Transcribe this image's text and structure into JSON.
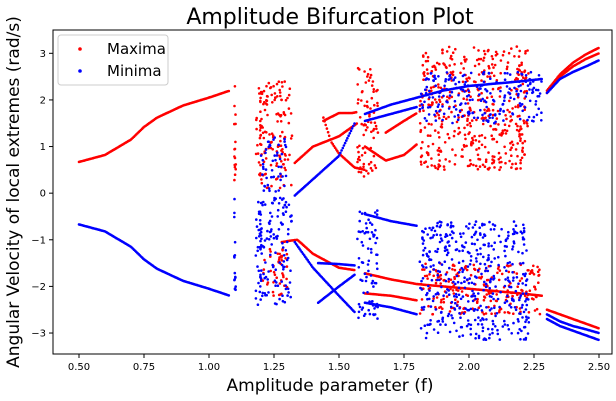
{
  "chart_data": {
    "type": "scatter",
    "title": "Amplitude Bifurcation Plot",
    "xlabel": "Amplitude parameter (f)",
    "ylabel": "Angular Velocity of local extremes (rad/s)",
    "xlim": [
      0.4,
      2.55
    ],
    "ylim": [
      -3.45,
      3.5
    ],
    "xticks": [
      "0.50",
      "0.75",
      "1.00",
      "1.25",
      "1.50",
      "1.75",
      "2.00",
      "2.25",
      "2.50"
    ],
    "xtick_values": [
      0.5,
      0.75,
      1.0,
      1.25,
      1.5,
      1.75,
      2.0,
      2.25,
      2.5
    ],
    "yticks": [
      "−3",
      "−2",
      "−1",
      "0",
      "1",
      "2",
      "3"
    ],
    "ytick_values": [
      -3,
      -2,
      -1,
      0,
      1,
      2,
      3
    ],
    "grid": false,
    "legend_position": "top-left",
    "series": [
      {
        "name": "Maxima",
        "color": "#ff0000",
        "regular_curves": [
          [
            [
              0.5,
              0.67
            ],
            [
              0.6,
              0.82
            ],
            [
              0.7,
              1.15
            ],
            [
              0.75,
              1.42
            ],
            [
              0.8,
              1.62
            ],
            [
              0.9,
              1.88
            ],
            [
              1.0,
              2.05
            ],
            [
              1.08,
              2.2
            ]
          ],
          [
            [
              1.33,
              0.65
            ],
            [
              1.4,
              1.0
            ],
            [
              1.5,
              1.22
            ],
            [
              1.57,
              1.5
            ]
          ],
          [
            [
              1.44,
              1.55
            ],
            [
              1.5,
              1.72
            ],
            [
              1.55,
              1.72
            ],
            [
              1.57,
              1.74
            ]
          ],
          [
            [
              1.44,
              1.62
            ],
            [
              1.47,
              1.1
            ],
            [
              1.5,
              0.85
            ],
            [
              1.56,
              0.55
            ],
            [
              1.6,
              0.5
            ]
          ],
          [
            [
              1.6,
              1.0
            ],
            [
              1.68,
              0.7
            ],
            [
              1.75,
              0.82
            ],
            [
              1.8,
              1.05
            ]
          ],
          [
            [
              1.68,
              1.3
            ],
            [
              1.75,
              1.55
            ],
            [
              1.8,
              1.72
            ]
          ],
          [
            [
              2.3,
              2.2
            ],
            [
              2.35,
              2.55
            ],
            [
              2.4,
              2.8
            ],
            [
              2.45,
              2.98
            ],
            [
              2.5,
              3.12
            ]
          ],
          [
            [
              2.3,
              2.15
            ],
            [
              2.35,
              2.5
            ],
            [
              2.4,
              2.72
            ],
            [
              2.45,
              2.88
            ],
            [
              2.5,
              3.0
            ]
          ],
          [
            [
              1.28,
              -1.05
            ],
            [
              1.31,
              -1.02
            ],
            [
              1.34,
              -1.0
            ],
            [
              1.4,
              -1.3
            ],
            [
              1.5,
              -1.6
            ],
            [
              1.56,
              -1.65
            ]
          ],
          [
            [
              1.6,
              -1.72
            ],
            [
              1.7,
              -1.85
            ],
            [
              1.8,
              -1.95
            ],
            [
              1.9,
              -2.0
            ],
            [
              2.0,
              -2.05
            ],
            [
              2.1,
              -2.1
            ],
            [
              2.2,
              -2.15
            ],
            [
              2.28,
              -2.2
            ]
          ],
          [
            [
              2.3,
              -2.5
            ],
            [
              2.35,
              -2.6
            ],
            [
              2.4,
              -2.7
            ],
            [
              2.45,
              -2.8
            ],
            [
              2.5,
              -2.9
            ]
          ],
          [
            [
              1.6,
              -2.15
            ],
            [
              1.7,
              -2.2
            ],
            [
              1.8,
              -2.3
            ]
          ]
        ],
        "chaotic_bands": [
          [
            1.18,
            1.32,
            0.1,
            2.4
          ],
          [
            1.57,
            1.65,
            0.35,
            2.7
          ],
          [
            1.81,
            2.23,
            0.5,
            3.15
          ],
          [
            1.2,
            1.3,
            -2.2,
            -1.1
          ],
          [
            1.81,
            2.28,
            -2.6,
            -1.5
          ]
        ],
        "vertical_scatter": [
          [
            1.1,
            0.0,
            2.3
          ],
          [
            1.2,
            0.0,
            2.3
          ]
        ]
      },
      {
        "name": "Minima",
        "color": "#0000ff",
        "regular_curves": [
          [
            [
              0.5,
              -0.67
            ],
            [
              0.6,
              -0.82
            ],
            [
              0.7,
              -1.15
            ],
            [
              0.75,
              -1.42
            ],
            [
              0.8,
              -1.62
            ],
            [
              0.9,
              -1.88
            ],
            [
              1.0,
              -2.05
            ],
            [
              1.08,
              -2.2
            ]
          ],
          [
            [
              1.33,
              -1.05
            ],
            [
              1.4,
              -1.6
            ],
            [
              1.5,
              -2.2
            ],
            [
              1.56,
              -2.55
            ]
          ],
          [
            [
              1.42,
              -2.35
            ],
            [
              1.5,
              -2.0
            ],
            [
              1.56,
              -1.75
            ]
          ],
          [
            [
              1.42,
              -1.5
            ],
            [
              1.5,
              -1.52
            ],
            [
              1.56,
              -1.55
            ]
          ],
          [
            [
              1.6,
              -0.45
            ],
            [
              1.7,
              -0.6
            ],
            [
              1.8,
              -0.7
            ]
          ],
          [
            [
              1.6,
              -2.35
            ],
            [
              1.7,
              -2.45
            ],
            [
              1.8,
              -2.6
            ]
          ],
          [
            [
              2.3,
              -2.7
            ],
            [
              2.35,
              -2.85
            ],
            [
              2.4,
              -2.95
            ],
            [
              2.45,
              -3.05
            ],
            [
              2.5,
              -3.15
            ]
          ],
          [
            [
              2.3,
              -2.6
            ],
            [
              2.35,
              -2.75
            ],
            [
              2.4,
              -2.85
            ],
            [
              2.45,
              -2.92
            ],
            [
              2.5,
              -3.0
            ]
          ],
          [
            [
              1.33,
              -0.05
            ],
            [
              1.4,
              0.3
            ],
            [
              1.5,
              0.8
            ],
            [
              1.56,
              1.5
            ]
          ],
          [
            [
              1.6,
              1.7
            ],
            [
              1.7,
              1.9
            ],
            [
              1.8,
              2.05
            ],
            [
              1.9,
              2.2
            ],
            [
              2.0,
              2.3
            ],
            [
              2.1,
              2.35
            ],
            [
              2.2,
              2.4
            ],
            [
              2.28,
              2.45
            ]
          ],
          [
            [
              2.3,
              2.15
            ],
            [
              2.35,
              2.45
            ],
            [
              2.4,
              2.6
            ],
            [
              2.45,
              2.72
            ],
            [
              2.5,
              2.85
            ]
          ],
          [
            [
              1.6,
              1.55
            ],
            [
              1.7,
              1.7
            ],
            [
              1.8,
              1.85
            ]
          ]
        ],
        "chaotic_bands": [
          [
            1.18,
            1.32,
            -2.4,
            -0.1
          ],
          [
            1.57,
            1.65,
            -2.7,
            -0.35
          ],
          [
            1.81,
            2.23,
            -3.15,
            -0.6
          ],
          [
            1.2,
            1.3,
            0.0,
            1.2
          ],
          [
            1.81,
            2.28,
            1.5,
            2.6
          ]
        ],
        "vertical_scatter": [
          [
            1.1,
            -2.3,
            0.0
          ],
          [
            1.2,
            -2.3,
            0.0
          ]
        ]
      }
    ]
  }
}
